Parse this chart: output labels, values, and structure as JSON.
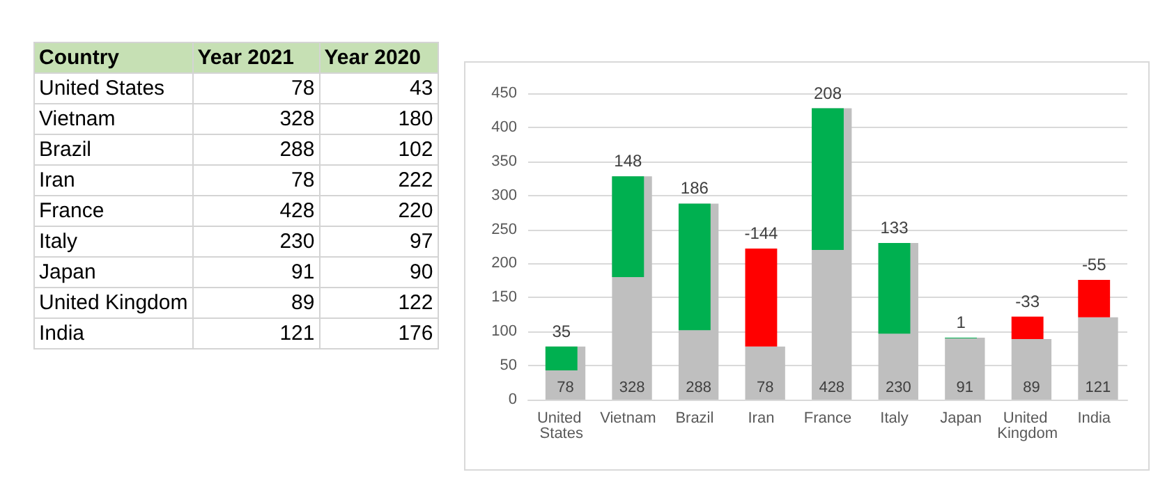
{
  "chart_data": [
    {
      "type": "other",
      "annotations": [
        "Country",
        "Year 2021",
        "Year 2020",
        "United States",
        "78",
        "43",
        "Vietnam",
        "328",
        "180",
        "Brazil",
        "288",
        "102",
        "Iran",
        "78",
        "222",
        "France",
        "428",
        "220",
        "Italy",
        "230",
        "97",
        "Japan",
        "91",
        "90",
        "United Kingdom",
        "89",
        "122",
        "India",
        "121",
        "176"
      ]
    },
    {
      "type": "bar",
      "categories": [
        "United States",
        "Vietnam",
        "Brazil",
        "Iran",
        "France",
        "Italy",
        "Japan",
        "United Kingdom",
        "India"
      ],
      "series": [
        {
          "color": "#bfbfbf",
          "values": [
            78,
            328,
            288,
            78,
            428,
            230,
            91,
            89,
            121
          ]
        },
        {
          "base": [
            43,
            180,
            102,
            222,
            220,
            97,
            90,
            122,
            176
          ],
          "values": [
            35,
            148,
            186,
            -144,
            208,
            133,
            1,
            -33,
            -55
          ],
          "colors": [
            "#00b050",
            "#00b050",
            "#00b050",
            "#ff0000",
            "#00b050",
            "#00b050",
            "#00b050",
            "#ff0000",
            "#ff0000"
          ]
        }
      ],
      "ylim": [
        0,
        450
      ],
      "yticks": [
        0,
        50,
        100,
        150,
        200,
        250,
        300,
        350,
        400,
        450
      ],
      "grid": "y",
      "data_labels": true
    }
  ]
}
